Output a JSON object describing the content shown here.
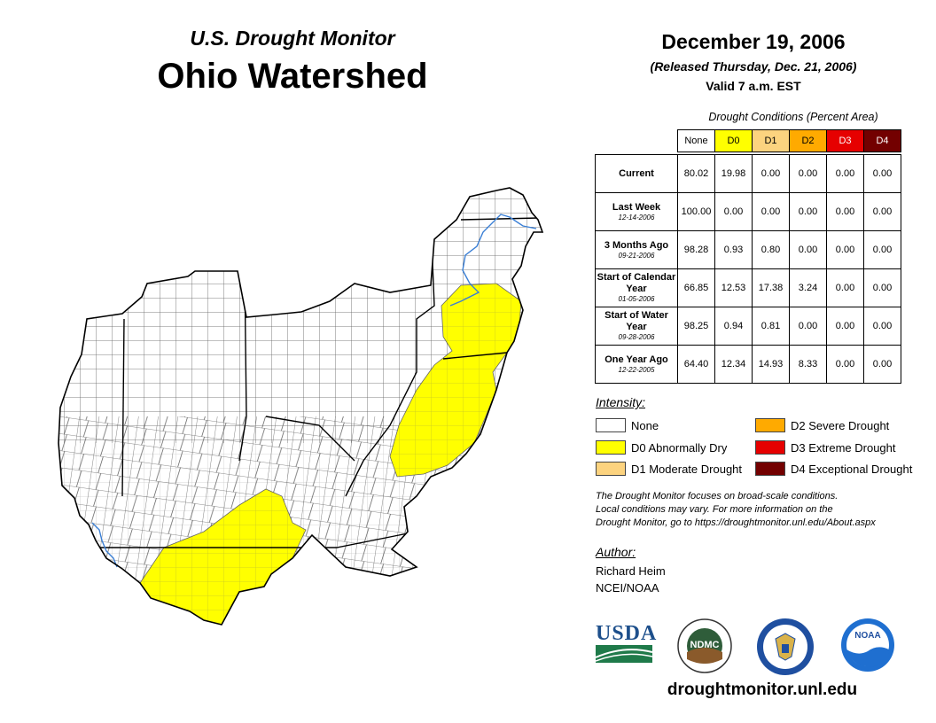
{
  "header": {
    "subtitle": "U.S. Drought Monitor",
    "title": "Ohio Watershed",
    "date": "December 19, 2006",
    "released": "(Released Thursday, Dec. 21, 2006)",
    "valid": "Valid 7 a.m. EST"
  },
  "table": {
    "caption": "Drought Conditions (Percent Area)",
    "columns": [
      "None",
      "D0",
      "D1",
      "D2",
      "D3",
      "D4"
    ],
    "column_colors": [
      "#ffffff",
      "#ffff00",
      "#fcd37f",
      "#ffaa00",
      "#e60000",
      "#730000"
    ],
    "rows": [
      {
        "label": "Current",
        "date": "",
        "values": [
          "80.02",
          "19.98",
          "0.00",
          "0.00",
          "0.00",
          "0.00"
        ]
      },
      {
        "label": "Last Week",
        "date": "12-14-2006",
        "values": [
          "100.00",
          "0.00",
          "0.00",
          "0.00",
          "0.00",
          "0.00"
        ]
      },
      {
        "label": "3 Months Ago",
        "date": "09-21-2006",
        "values": [
          "98.28",
          "0.93",
          "0.80",
          "0.00",
          "0.00",
          "0.00"
        ]
      },
      {
        "label": "Start of Calendar Year",
        "date": "01-05-2006",
        "values": [
          "66.85",
          "12.53",
          "17.38",
          "3.24",
          "0.00",
          "0.00"
        ]
      },
      {
        "label": "Start of Water Year",
        "date": "09-28-2006",
        "values": [
          "98.25",
          "0.94",
          "0.81",
          "0.00",
          "0.00",
          "0.00"
        ]
      },
      {
        "label": "One Year Ago",
        "date": "12-22-2005",
        "values": [
          "64.40",
          "12.34",
          "14.93",
          "8.33",
          "0.00",
          "0.00"
        ]
      }
    ]
  },
  "legend": {
    "title": "Intensity:",
    "items": [
      {
        "label": "None",
        "color": "#ffffff"
      },
      {
        "label": "D0 Abnormally Dry",
        "color": "#ffff00"
      },
      {
        "label": "D1 Moderate Drought",
        "color": "#fcd37f"
      },
      {
        "label": "D2 Severe Drought",
        "color": "#ffaa00"
      },
      {
        "label": "D3 Extreme Drought",
        "color": "#e60000"
      },
      {
        "label": "D4 Exceptional Drought",
        "color": "#730000"
      }
    ]
  },
  "note": {
    "line1": "The Drought Monitor focuses on broad-scale conditions.",
    "line2": "Local conditions may vary. For more information on the",
    "line3": "Drought Monitor, go to https://droughtmonitor.unl.edu/About.aspx"
  },
  "author": {
    "title": "Author:",
    "name": "Richard Heim",
    "org": "NCEI/NOAA"
  },
  "logos": {
    "usda": "USDA",
    "ndmc": "NDMC",
    "noaa": "NOAA"
  },
  "site": "droughtmonitor.unl.edu",
  "map": {
    "colors": {
      "none": "#ffffff",
      "d0": "#ffff00",
      "county_line": "#555555",
      "state_line": "#000000",
      "river": "#3a7fd5"
    }
  }
}
